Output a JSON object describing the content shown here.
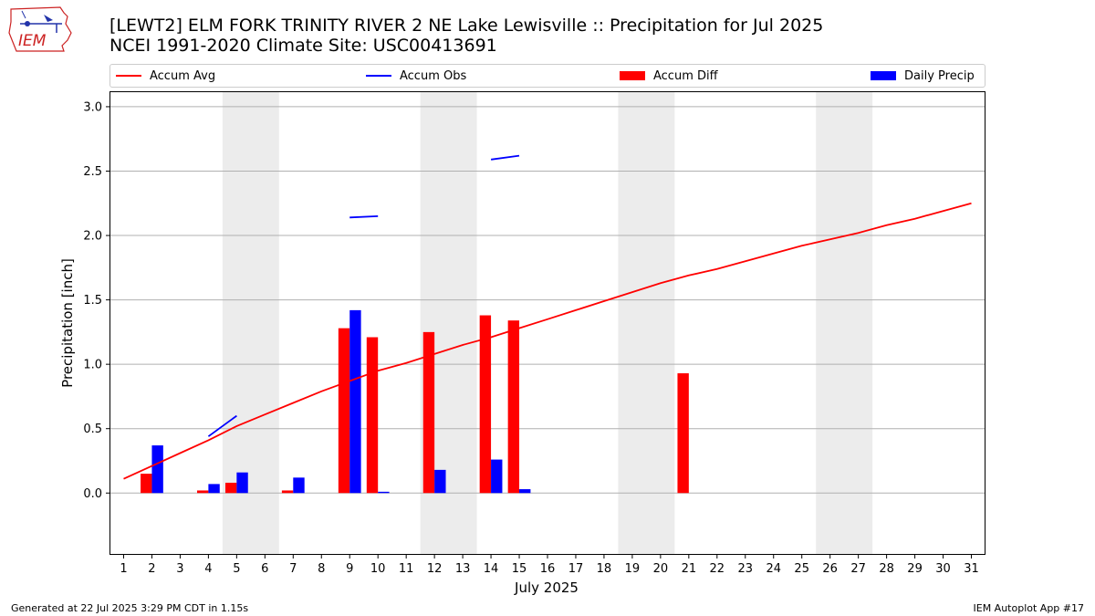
{
  "logo": {
    "text": "IEM"
  },
  "header": {
    "title_line1": "[LEWT2] ELM FORK TRINITY RIVER 2 NE Lake Lewisville :: Precipitation for Jul 2025",
    "title_line2": "NCEI 1991-2020 Climate Site: USC00413691"
  },
  "footer": {
    "generated": "Generated at 22 Jul 2025 3:29 PM CDT in 1.15s",
    "app": "IEM Autoplot App #17"
  },
  "colors": {
    "avg": "#ff0000",
    "obs": "#0000ff",
    "diff": "#ff0000",
    "daily": "#0000ff",
    "weekend_shade": "#ececec",
    "grid": "#b0b0b0"
  },
  "chart_data": {
    "type": "bar",
    "xlabel": "July 2025",
    "ylabel": "Precipitation [inch]",
    "ylim": [
      -0.48,
      3.12
    ],
    "yticks": [
      "0.0",
      "0.5",
      "1.0",
      "1.5",
      "2.0",
      "2.5",
      "3.0"
    ],
    "ytick_values": [
      0.0,
      0.5,
      1.0,
      1.5,
      2.0,
      2.5,
      3.0
    ],
    "xlim": [
      0.5,
      31.5
    ],
    "days": [
      "1",
      "2",
      "3",
      "4",
      "5",
      "6",
      "7",
      "8",
      "9",
      "10",
      "11",
      "12",
      "13",
      "14",
      "15",
      "16",
      "17",
      "18",
      "19",
      "20",
      "21",
      "22",
      "23",
      "24",
      "25",
      "26",
      "27",
      "28",
      "29",
      "30",
      "31"
    ],
    "grid": "horizontal",
    "legend_position": "top",
    "legend": [
      "Accum Avg",
      "Accum Obs",
      "Accum Diff",
      "Daily Precip"
    ],
    "weekend_shading": [
      [
        4.5,
        6.5
      ],
      [
        11.5,
        13.5
      ],
      [
        18.5,
        20.5
      ],
      [
        25.5,
        27.5
      ]
    ],
    "series": [
      {
        "name": "Accum Avg",
        "type": "line",
        "x": [
          1,
          2,
          3,
          4,
          5,
          6,
          7,
          8,
          9,
          10,
          11,
          12,
          13,
          14,
          15,
          16,
          17,
          18,
          19,
          20,
          21,
          22,
          23,
          24,
          25,
          26,
          27,
          28,
          29,
          30,
          31
        ],
        "values": [
          0.11,
          0.21,
          0.31,
          0.41,
          0.52,
          0.61,
          0.7,
          0.79,
          0.87,
          0.95,
          1.01,
          1.08,
          1.15,
          1.21,
          1.28,
          1.35,
          1.42,
          1.49,
          1.56,
          1.63,
          1.69,
          1.74,
          1.8,
          1.86,
          1.92,
          1.97,
          2.02,
          2.08,
          2.13,
          2.19,
          2.25
        ]
      },
      {
        "name": "Accum Obs",
        "type": "line",
        "segments": [
          {
            "x": [
              4,
              5
            ],
            "values": [
              0.44,
              0.6
            ]
          },
          {
            "x": [
              9,
              10
            ],
            "values": [
              2.14,
              2.15
            ]
          },
          {
            "x": [
              14,
              15
            ],
            "values": [
              2.59,
              2.62
            ]
          }
        ]
      },
      {
        "name": "Accum Diff",
        "type": "bar",
        "x": [
          2,
          4,
          5,
          7,
          9,
          10,
          12,
          14,
          15,
          21
        ],
        "values": [
          0.15,
          0.02,
          0.08,
          0.02,
          1.28,
          1.21,
          1.25,
          1.38,
          1.34,
          0.93
        ]
      },
      {
        "name": "Daily Precip",
        "type": "bar",
        "x": [
          2,
          4,
          5,
          7,
          9,
          10,
          12,
          14,
          15
        ],
        "values": [
          0.37,
          0.07,
          0.16,
          0.12,
          1.42,
          0.01,
          0.18,
          0.26,
          0.03
        ]
      }
    ]
  }
}
